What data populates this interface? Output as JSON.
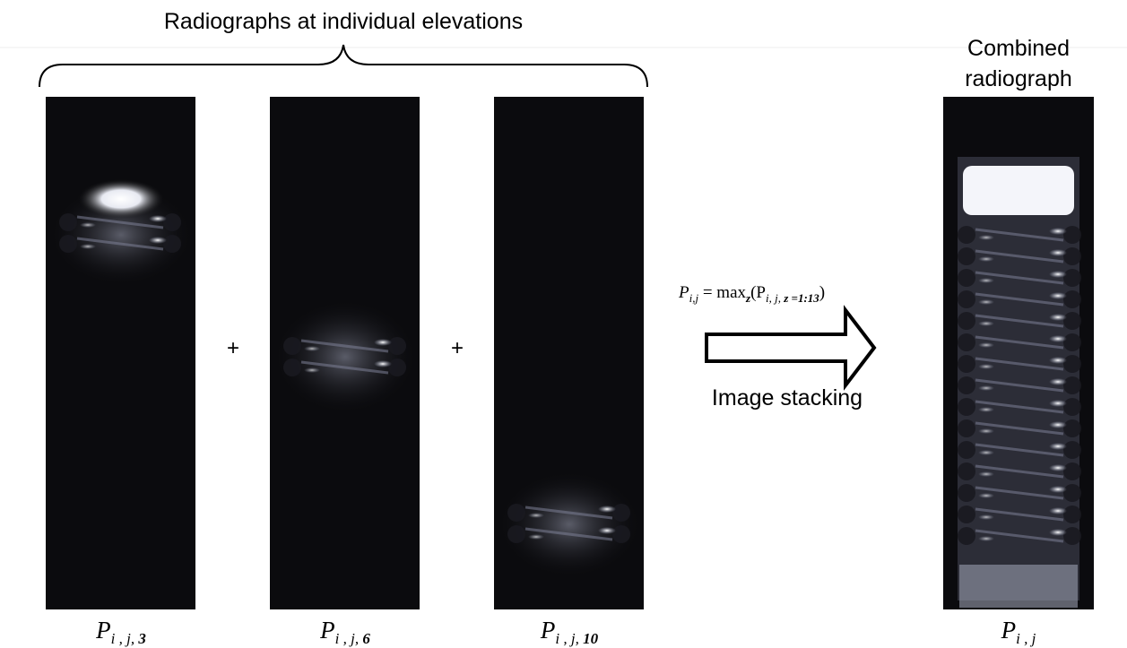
{
  "header": {
    "title": "Radiographs at individual elevations"
  },
  "panels": [
    {
      "label": {
        "base": "P",
        "sub": "i , j, ",
        "index": "3"
      }
    },
    {
      "label": {
        "base": "P",
        "sub": "i , j, ",
        "index": "6"
      }
    },
    {
      "label": {
        "base": "P",
        "sub": "i , j, ",
        "index": "10"
      }
    }
  ],
  "operators": [
    "+",
    "+"
  ],
  "formula": {
    "lhs": "P",
    "lhs_sub": "i,j",
    "equals": " = max",
    "op_sub": "z",
    "open": "(P",
    "arg_sub": "i, j, ",
    "arg_var": "z =1:13",
    "close": ")"
  },
  "arrow_label": "Image stacking",
  "combined": {
    "title_lines": [
      "Combined",
      "radiograph"
    ],
    "label": {
      "base": "P",
      "sub": "i , j"
    }
  }
}
